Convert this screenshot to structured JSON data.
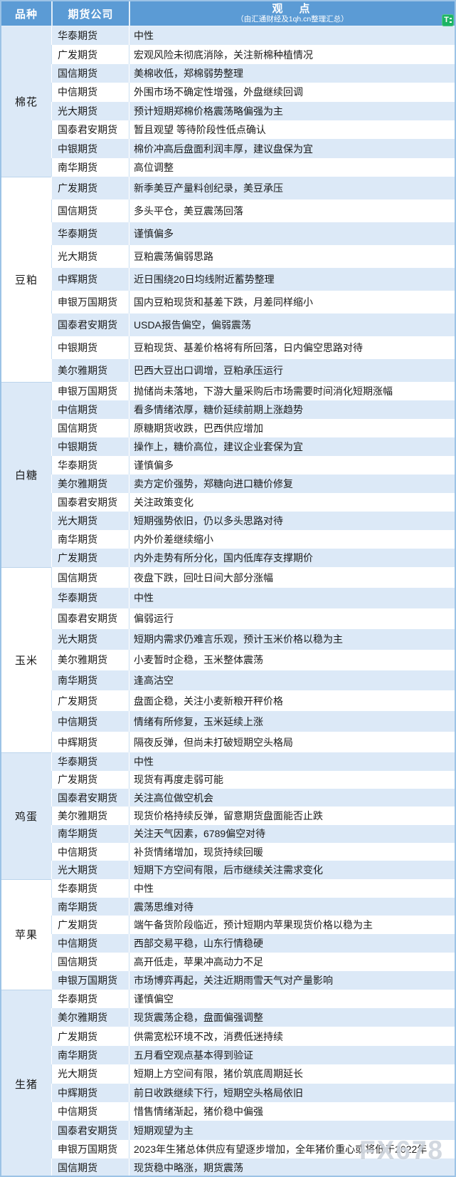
{
  "header": {
    "col_variety": "品种",
    "col_company": "期货公司",
    "col_viewpoint": "观　点",
    "viewpoint_subtitle": "（由汇通财经及1qh.cn整理汇总）",
    "translate_icon_glyph": "T"
  },
  "watermark": "FX678",
  "colors": {
    "header_bg": "#5B9BD5",
    "header_text": "#FFFFFF",
    "row_stripe_blue": "#DCE9F7",
    "row_white": "#FFFFFF",
    "grid_line": "#CBDFF2",
    "outer_border": "#9CC3E6",
    "translate_icon_green": "#1CB465",
    "watermark_gray": "#ADB8C6"
  },
  "sections": [
    {
      "variety": "棉花",
      "rows": [
        {
          "company": "华泰期货",
          "view": "中性"
        },
        {
          "company": "广发期货",
          "view": "宏观风险未彻底消除，关注新棉种植情况"
        },
        {
          "company": "国信期货",
          "view": "美棉收低，郑棉弱势整理"
        },
        {
          "company": "中信期货",
          "view": "外围市场不确定性增强，外盘继续回调"
        },
        {
          "company": "光大期货",
          "view": "预计短期郑棉价格震荡略偏强为主"
        },
        {
          "company": "国泰君安期货",
          "view": "暂且观望 等待阶段性低点确认"
        },
        {
          "company": "中银期货",
          "view": "棉价冲高后盘面利润丰厚，建议盘保为宜"
        },
        {
          "company": "南华期货",
          "view": "高位调整"
        }
      ]
    },
    {
      "variety": "豆粕",
      "rows": [
        {
          "company": "广发期货",
          "view": "新季美豆产量料创纪录，美豆承压"
        },
        {
          "company": "国信期货",
          "view": "多头平仓，美豆震荡回落"
        },
        {
          "company": "华泰期货",
          "view": "谨慎偏多"
        },
        {
          "company": "光大期货",
          "view": "豆粕震荡偏弱思路"
        },
        {
          "company": "中辉期货",
          "view": "近日围绕20日均线附近蓄势整理"
        },
        {
          "company": "申银万国期货",
          "view": "国内豆粕现货和基差下跌，月差同样缩小"
        },
        {
          "company": "国泰君安期货",
          "view": "USDA报告偏空，偏弱震荡"
        },
        {
          "company": "中银期货",
          "view": "豆粕现货、基差价格将有所回落，日内偏空思路对待"
        },
        {
          "company": "美尔雅期货",
          "view": "巴西大豆出口调增，豆粕承压运行"
        }
      ]
    },
    {
      "variety": "白糖",
      "rows": [
        {
          "company": "申银万国期货",
          "view": "抛储尚未落地，下游大量采购后市场需要时间消化短期涨幅"
        },
        {
          "company": "中信期货",
          "view": "看多情绪浓厚，糖价延续前期上涨趋势"
        },
        {
          "company": "国信期货",
          "view": "原糖期货收跌，巴西供应增加"
        },
        {
          "company": "中银期货",
          "view": "操作上，糖价高位，建议企业套保为宜"
        },
        {
          "company": "华泰期货",
          "view": "谨慎偏多"
        },
        {
          "company": "美尔雅期货",
          "view": "卖方定价强势，郑糖向进口糖价修复"
        },
        {
          "company": "国泰君安期货",
          "view": "关注政策变化"
        },
        {
          "company": "光大期货",
          "view": "短期强势依旧，仍以多头思路对待"
        },
        {
          "company": "南华期货",
          "view": "内外价差继续缩小"
        },
        {
          "company": "广发期货",
          "view": "内外走势有所分化，国内低库存支撑期价"
        }
      ]
    },
    {
      "variety": "玉米",
      "rows": [
        {
          "company": "国信期货",
          "view": "夜盘下跌，回吐日间大部分涨幅"
        },
        {
          "company": "华泰期货",
          "view": "中性"
        },
        {
          "company": "国泰君安期货",
          "view": "偏弱运行"
        },
        {
          "company": "光大期货",
          "view": "短期内需求仍难言乐观，预计玉米价格以稳为主"
        },
        {
          "company": "美尔雅期货",
          "view": "小麦暂时企稳，玉米整体震荡"
        },
        {
          "company": "南华期货",
          "view": "逢高沽空"
        },
        {
          "company": "广发期货",
          "view": "盘面企稳，关注小麦新粮开秤价格"
        },
        {
          "company": "中信期货",
          "view": "情绪有所修复，玉米延续上涨"
        },
        {
          "company": "中辉期货",
          "view": "隔夜反弹，但尚未打破短期空头格局"
        }
      ]
    },
    {
      "variety": "鸡蛋",
      "rows": [
        {
          "company": "华泰期货",
          "view": "中性"
        },
        {
          "company": "广发期货",
          "view": "现货有再度走弱可能"
        },
        {
          "company": "国泰君安期货",
          "view": "关注高位做空机会"
        },
        {
          "company": "美尔雅期货",
          "view": "现货价格持续反弹，留意期货盘面能否止跌"
        },
        {
          "company": "南华期货",
          "view": "关注天气因素，6789偏空对待"
        },
        {
          "company": "中信期货",
          "view": "补货情绪增加，现货持续回暖"
        },
        {
          "company": "光大期货",
          "view": "短期下方空间有限，后市继续关注需求变化"
        }
      ]
    },
    {
      "variety": "苹果",
      "rows": [
        {
          "company": "华泰期货",
          "view": "中性"
        },
        {
          "company": "南华期货",
          "view": "震荡思维对待"
        },
        {
          "company": "广发期货",
          "view": "端午备货阶段临近，预计短期内苹果现货价格以稳为主"
        },
        {
          "company": "中信期货",
          "view": "西部交易平稳，山东行情稳硬"
        },
        {
          "company": "国信期货",
          "view": "高开低走，苹果冲高动力不足"
        },
        {
          "company": "申银万国期货",
          "view": "市场博弈再起，关注近期雨雪天气对产量影响"
        }
      ]
    },
    {
      "variety": "生猪",
      "rows": [
        {
          "company": "华泰期货",
          "view": "谨慎偏空"
        },
        {
          "company": "美尔雅期货",
          "view": "现货震荡企稳，盘面偏强调整"
        },
        {
          "company": "广发期货",
          "view": "供需宽松环境不改，消费低迷持续"
        },
        {
          "company": "南华期货",
          "view": "五月看空观点基本得到验证"
        },
        {
          "company": "光大期货",
          "view": "短期上方空间有限，猪价筑底周期延长"
        },
        {
          "company": "中辉期货",
          "view": "前日收跌继续下行，短期空头格局依旧"
        },
        {
          "company": "中信期货",
          "view": "惜售情绪渐起，猪价稳中偏强"
        },
        {
          "company": "国泰君安期货",
          "view": "短期观望为主"
        },
        {
          "company": "申银万国期货",
          "view": "2023年生猪总体供应有望逐步增加，全年猪价重心或将低于2022年"
        },
        {
          "company": "国信期货",
          "view": "现货稳中略涨，期货震荡"
        }
      ]
    }
  ]
}
